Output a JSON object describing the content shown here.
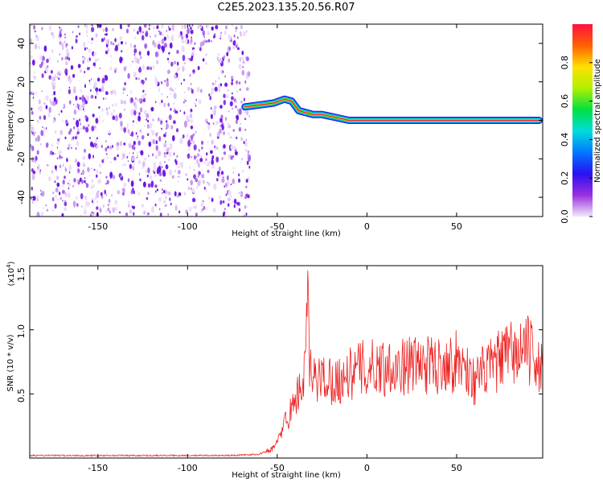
{
  "title": "C2E5.2023.135.20.56.R07",
  "chart_data": [
    {
      "type": "heatmap",
      "xlabel": "Height of straight line (km)",
      "ylabel": "Frequency (Hz)",
      "xlim": [
        -188,
        98
      ],
      "ylim": [
        -50,
        50
      ],
      "xticks": [
        -150,
        -100,
        -50,
        0,
        50
      ],
      "xtick_labels": [
        "-150",
        "-100",
        "-50",
        "0",
        "50"
      ],
      "yticks": [
        -40,
        -20,
        0,
        20,
        40
      ],
      "ytick_labels": [
        "-40",
        "-20",
        "0",
        "20",
        "40"
      ],
      "noise_region_x": [
        -188,
        -68
      ],
      "signal_track": {
        "x": [
          -68,
          -60,
          -52,
          -46,
          -42,
          -38,
          -34,
          -30,
          -25,
          -20,
          -15,
          -10,
          0,
          10,
          20,
          30,
          40,
          50,
          60,
          70,
          80,
          90,
          96
        ],
        "frequency_hz": [
          7,
          8,
          9,
          11,
          10,
          5,
          4,
          3,
          3,
          2,
          1,
          0,
          0,
          0,
          0,
          0,
          0,
          0,
          0,
          0,
          0,
          0,
          0
        ]
      },
      "colorbar": {
        "label": "Normalized spectral amplitude",
        "range": [
          0,
          1
        ],
        "ticks": [
          0.0,
          0.2,
          0.4,
          0.6,
          0.8
        ],
        "tick_labels": [
          "0.0",
          "0.2",
          "0.4",
          "0.6",
          "0.8"
        ],
        "colors": [
          "#f2e8fa",
          "#9a30e0",
          "#2a10f0",
          "#0078ff",
          "#00dcdc",
          "#00e040",
          "#b0f000",
          "#ffe000",
          "#ff6000",
          "#ff1040"
        ]
      },
      "grid": false
    },
    {
      "type": "line",
      "xlabel": "Height of straight line (km)",
      "ylabel": "SNR (10 * v/v)",
      "y_multiplier_label": "(x10",
      "y_multiplier_exp": "4",
      "xlim": [
        -188,
        98
      ],
      "ylim": [
        0,
        1.5
      ],
      "xticks": [
        -150,
        -100,
        -50,
        0,
        50
      ],
      "xtick_labels": [
        "-150",
        "-100",
        "-50",
        "0",
        "50"
      ],
      "yticks": [
        0.5,
        1.0,
        1.5
      ],
      "ytick_labels": [
        "0.5",
        "1.0",
        "1.5"
      ],
      "color": "#ee2222",
      "series": [
        {
          "x": [
            -188,
            -160,
            -130,
            -100,
            -75,
            -60,
            -55,
            -52,
            -50,
            -48,
            -46,
            -44,
            -42,
            -40,
            -38,
            -36,
            -34,
            -33,
            -32,
            -30,
            -28,
            -26,
            -24,
            -22,
            -20,
            -18,
            -16,
            -14,
            -12,
            -10,
            -8,
            -6,
            -4,
            -2,
            0,
            2,
            4,
            6,
            8,
            10,
            12,
            14,
            16,
            18,
            20,
            22,
            24,
            26,
            28,
            30,
            32,
            34,
            36,
            38,
            40,
            42,
            44,
            46,
            48,
            50,
            52,
            54,
            56,
            58,
            60,
            62,
            64,
            66,
            68,
            70,
            72,
            74,
            76,
            78,
            80,
            82,
            84,
            86,
            88,
            90,
            92,
            94,
            96,
            98
          ],
          "values": [
            0.02,
            0.02,
            0.02,
            0.02,
            0.02,
            0.03,
            0.06,
            0.08,
            0.12,
            0.2,
            0.28,
            0.32,
            0.38,
            0.45,
            0.52,
            0.58,
            0.7,
            1.5,
            0.68,
            0.6,
            0.62,
            0.63,
            0.62,
            0.64,
            0.6,
            0.62,
            0.6,
            0.62,
            0.65,
            0.66,
            0.65,
            0.68,
            0.7,
            0.7,
            0.68,
            0.7,
            0.72,
            0.71,
            0.72,
            0.7,
            0.72,
            0.74,
            0.72,
            0.7,
            0.71,
            0.72,
            0.74,
            0.73,
            0.72,
            0.74,
            0.73,
            0.72,
            0.74,
            0.73,
            0.72,
            0.75,
            0.76,
            0.75,
            0.74,
            0.76,
            0.74,
            0.72,
            0.7,
            0.62,
            0.6,
            0.62,
            0.66,
            0.68,
            0.7,
            0.72,
            0.74,
            0.76,
            0.78,
            0.8,
            0.82,
            0.8,
            0.82,
            0.84,
            0.86,
            0.84,
            0.8,
            0.78,
            0.72,
            0.7
          ]
        }
      ],
      "grid": false
    }
  ]
}
